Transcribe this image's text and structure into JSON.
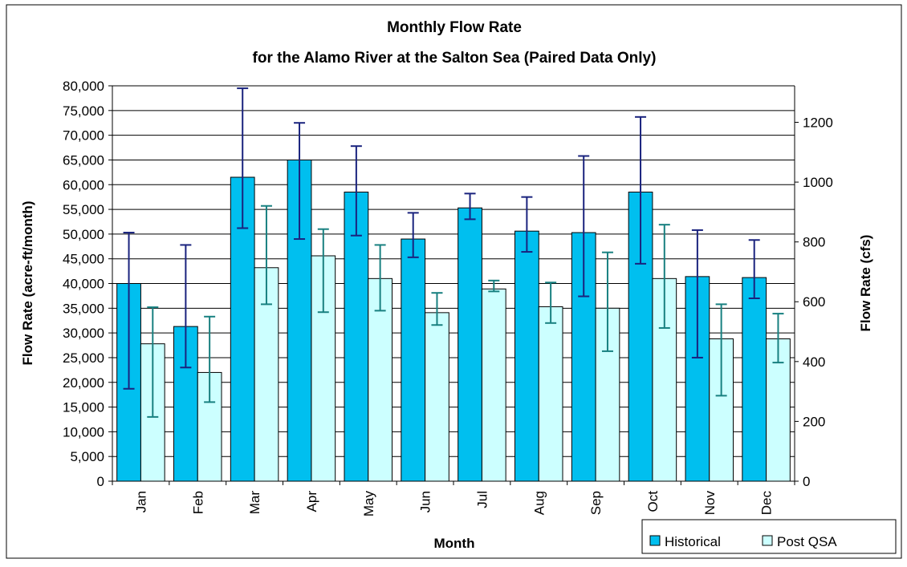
{
  "chart_data": {
    "type": "bar",
    "title": "Monthly Flow Rate",
    "subtitle": "for the Alamo River at the Salton Sea (Paired Data Only)",
    "xlabel": "Month",
    "ylabel": "Flow Rate (acre-ft/month)",
    "y2label": "Flow Rate (cfs)",
    "categories": [
      "Jan",
      "Feb",
      "Mar",
      "Apr",
      "May",
      "Jun",
      "Jul",
      "Aug",
      "Sep",
      "Oct",
      "Nov",
      "Dec"
    ],
    "ylim": [
      0,
      80000
    ],
    "y2lim": [
      0,
      1322
    ],
    "yticks": [
      "0",
      "5,000",
      "10,000",
      "15,000",
      "20,000",
      "25,000",
      "30,000",
      "35,000",
      "40,000",
      "45,000",
      "50,000",
      "55,000",
      "60,000",
      "65,000",
      "70,000",
      "75,000",
      "80,000"
    ],
    "y2ticks": [
      "0",
      "200",
      "400",
      "600",
      "800",
      "1000",
      "1200"
    ],
    "grid": true,
    "legend_position": "bottom-right",
    "series": [
      {
        "name": "Historical",
        "color": "#00bfef",
        "error_color": "#1a237e",
        "values": [
          40000,
          31300,
          61500,
          65000,
          58500,
          49000,
          55300,
          50600,
          50300,
          58500,
          41400,
          41200
        ],
        "error_low": [
          18700,
          23000,
          51200,
          49000,
          49700,
          45300,
          53000,
          46400,
          37400,
          44000,
          25000,
          37000
        ],
        "error_high": [
          50300,
          47800,
          79500,
          72500,
          67800,
          54300,
          58200,
          57500,
          65800,
          73700,
          50800,
          48800
        ]
      },
      {
        "name": "Post QSA",
        "color": "#ccffff",
        "error_color": "#188080",
        "values": [
          27800,
          22000,
          43200,
          45600,
          41000,
          34100,
          38900,
          35300,
          35000,
          41000,
          28800,
          28800
        ],
        "error_low": [
          13000,
          16000,
          35800,
          34200,
          34500,
          31600,
          38400,
          32000,
          26300,
          31000,
          17300,
          24000
        ],
        "error_high": [
          35200,
          33300,
          55700,
          51000,
          47800,
          38100,
          40600,
          40200,
          46300,
          51900,
          35800,
          33900
        ]
      }
    ]
  }
}
